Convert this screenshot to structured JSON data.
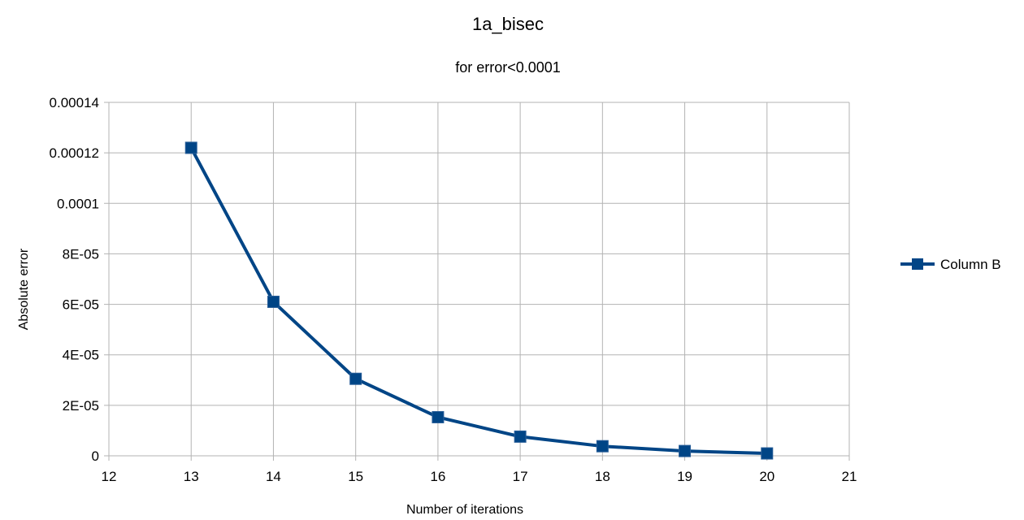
{
  "chart_data": {
    "type": "scatter",
    "title": "1a_bisec",
    "subtitle": "for error<0.0001",
    "xlabel": "Number of iterations",
    "ylabel": "Absolute error",
    "xlim": [
      12,
      21
    ],
    "ylim": [
      0,
      0.00014
    ],
    "x_ticks": [
      "12",
      "13",
      "14",
      "15",
      "16",
      "17",
      "18",
      "19",
      "20",
      "21"
    ],
    "y_ticks": [
      "0",
      "2E-05",
      "4E-05",
      "6E-05",
      "8E-05",
      "0.0001",
      "0.00012",
      "0.00014"
    ],
    "grid": true,
    "legend_position": "right",
    "series": [
      {
        "name": "Column B",
        "color": "#004586",
        "marker": "square",
        "line": true,
        "x": [
          13,
          14,
          15,
          16,
          17,
          18,
          19,
          20
        ],
        "y": [
          0.000122,
          6.1e-05,
          3.05e-05,
          1.53e-05,
          7.6e-06,
          3.8e-06,
          1.9e-06,
          9.5e-07
        ]
      }
    ]
  }
}
